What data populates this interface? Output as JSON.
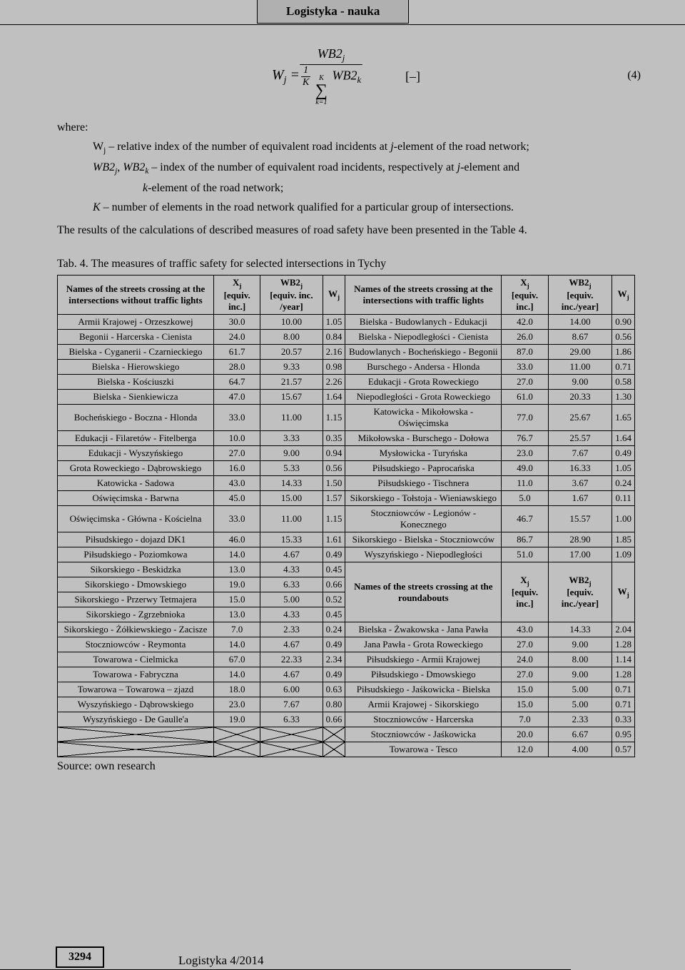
{
  "journal_header": "Logistyka - nauka",
  "equation_number": "(4)",
  "equation_unit": "[–]",
  "where_label": "where:",
  "definitions": {
    "wj": "W<sub>j</sub> – relative index of the number of equivalent road incidents at <i>j</i>-element of the road network;",
    "wb": "<i>WB2<sub>j</sub></i>, <i>WB2<sub>k</sub></i> – index of the number of equivalent road incidents, respectively at <i>j</i>-element and",
    "wb2": "<i>k</i>-element of the road network;",
    "K": "<i>K</i> – number of elements in the road network qualified for a particular group of intersections."
  },
  "results_line": "The results of  the calculations of described measures of road safety have been presented in the Table 4.",
  "table_caption": "Tab. 4. The measures of traffic safety for selected intersections in Tychy",
  "headers_left": {
    "name": "Names of the streets crossing at the intersections without traffic lights",
    "xj": "X<sub>j</sub><br>[equiv. inc.]",
    "wb2j": "WB2<sub>j</sub><br>[equiv. inc. /year]",
    "wj": "W<sub>j</sub>"
  },
  "headers_right": {
    "name": "Names of the streets crossing at the intersections with traffic lights",
    "xj": "X<sub>j</sub><br>[equiv. inc.]",
    "wb2j": "WB2<sub>j</sub><br>[equiv. inc./year]",
    "wj": "W<sub>j</sub>"
  },
  "headers_round": {
    "name": "Names of the streets crossing at the roundabouts",
    "xj": "X<sub>j</sub><br>[equiv. inc.]",
    "wb2j": "WB2<sub>j</sub><br>[equiv. inc./year]",
    "wj": "W<sub>j</sub>"
  },
  "left_rows": [
    [
      "Armii Krajowej - Orzeszkowej",
      "30.0",
      "10.00",
      "1.05"
    ],
    [
      "Begonii - Harcerska - Cienista",
      "24.0",
      "8.00",
      "0.84"
    ],
    [
      "Bielska - Cyganerii - Czarnieckiego",
      "61.7",
      "20.57",
      "2.16"
    ],
    [
      "Bielska - Hierowskiego",
      "28.0",
      "9.33",
      "0.98"
    ],
    [
      "Bielska - Kościuszki",
      "64.7",
      "21.57",
      "2.26"
    ],
    [
      "Bielska - Sienkiewicza",
      "47.0",
      "15.67",
      "1.64"
    ],
    [
      "Bocheńskiego - Boczna - Hlonda",
      "33.0",
      "11.00",
      "1.15"
    ],
    [
      "Edukacji - Filaretów - Fitelberga",
      "10.0",
      "3.33",
      "0.35"
    ],
    [
      "Edukacji - Wyszyńskiego",
      "27.0",
      "9.00",
      "0.94"
    ],
    [
      "Grota Roweckiego - Dąbrowskiego",
      "16.0",
      "5.33",
      "0.56"
    ],
    [
      "Katowicka - Sadowa",
      "43.0",
      "14.33",
      "1.50"
    ],
    [
      "Oświęcimska - Barwna",
      "45.0",
      "15.00",
      "1.57"
    ],
    [
      "Oświęcimska - Główna - Kościelna",
      "33.0",
      "11.00",
      "1.15"
    ],
    [
      "Piłsudskiego - dojazd DK1",
      "46.0",
      "15.33",
      "1.61"
    ],
    [
      "Piłsudskiego - Poziomkowa",
      "14.0",
      "4.67",
      "0.49"
    ],
    [
      "Sikorskiego - Beskidzka",
      "13.0",
      "4.33",
      "0.45"
    ],
    [
      "Sikorskiego - Dmowskiego",
      "19.0",
      "6.33",
      "0.66"
    ],
    [
      "Sikorskiego - Przerwy Tetmajera",
      "15.0",
      "5.00",
      "0.52"
    ],
    [
      "Sikorskiego - Zgrzebnioka",
      "13.0",
      "4.33",
      "0.45"
    ],
    [
      "Sikorskiego - Żółkiewskiego - Zacisze",
      "7.0",
      "2.33",
      "0.24"
    ],
    [
      "Stoczniowców - Reymonta",
      "14.0",
      "4.67",
      "0.49"
    ],
    [
      "Towarowa - Cielmicka",
      "67.0",
      "22.33",
      "2.34"
    ],
    [
      "Towarowa - Fabryczna",
      "14.0",
      "4.67",
      "0.49"
    ],
    [
      "Towarowa – Towarowa – zjazd",
      "18.0",
      "6.00",
      "0.63"
    ],
    [
      "Wyszyńskiego - Dąbrowskiego",
      "23.0",
      "7.67",
      "0.80"
    ],
    [
      "Wyszyńskiego - De Gaulle'a",
      "19.0",
      "6.33",
      "0.66"
    ]
  ],
  "right_rows": [
    [
      "Bielska - Budowlanych - Edukacji",
      "42.0",
      "14.00",
      "0.90"
    ],
    [
      "Bielska - Niepodległości - Cienista",
      "26.0",
      "8.67",
      "0.56"
    ],
    [
      "Budowlanych - Bocheńskiego - Begonii",
      "87.0",
      "29.00",
      "1.86"
    ],
    [
      "Burschego - Andersa - Hlonda",
      "33.0",
      "11.00",
      "0.71"
    ],
    [
      "Edukacji - Grota Roweckiego",
      "27.0",
      "9.00",
      "0.58"
    ],
    [
      "Niepodległości - Grota Roweckiego",
      "61.0",
      "20.33",
      "1.30"
    ],
    [
      "Katowicka - Mikołowska - Oświęcimska",
      "77.0",
      "25.67",
      "1.65"
    ],
    [
      "Mikołowska - Burschego - Dołowa",
      "76.7",
      "25.57",
      "1.64"
    ],
    [
      "Mysłowicka - Turyńska",
      "23.0",
      "7.67",
      "0.49"
    ],
    [
      "Piłsudskiego - Paprocańska",
      "49.0",
      "16.33",
      "1.05"
    ],
    [
      "Piłsudskiego - Tischnera",
      "11.0",
      "3.67",
      "0.24"
    ],
    [
      "Sikorskiego - Tołstoja - Wieniawskiego",
      "5.0",
      "1.67",
      "0.11"
    ],
    [
      "Stoczniowców - Legionów - Konecznego",
      "46.7",
      "15.57",
      "1.00"
    ],
    [
      "Sikorskiego - Bielska - Stoczniowców",
      "86.7",
      "28.90",
      "1.85"
    ],
    [
      "Wyszyńskiego - Niepodległości",
      "51.0",
      "17.00",
      "1.09"
    ]
  ],
  "round_rows": [
    [
      "Bielska - Żwakowska - Jana Pawła",
      "43.0",
      "14.33",
      "2.04"
    ],
    [
      "Jana Pawła - Grota Roweckiego",
      "27.0",
      "9.00",
      "1.28"
    ],
    [
      "Piłsudskiego - Armii Krajowej",
      "24.0",
      "8.00",
      "1.14"
    ],
    [
      "Piłsudskiego - Dmowskiego",
      "27.0",
      "9.00",
      "1.28"
    ],
    [
      "Piłsudskiego - Jaśkowicka - Bielska",
      "15.0",
      "5.00",
      "0.71"
    ],
    [
      "Armii Krajowej - Sikorskiego",
      "15.0",
      "5.00",
      "0.71"
    ],
    [
      "Stoczniowców - Harcerska",
      "7.0",
      "2.33",
      "0.33"
    ],
    [
      "Stoczniowców - Jaśkowicka",
      "20.0",
      "6.67",
      "0.95"
    ],
    [
      "Towarowa - Tesco",
      "12.0",
      "4.00",
      "0.57"
    ]
  ],
  "left_span_map": [
    1,
    1,
    1,
    1,
    1,
    1,
    1,
    1,
    1,
    1,
    1,
    1,
    1,
    1,
    1,
    4,
    1,
    1,
    1,
    1,
    1,
    1,
    2,
    1
  ],
  "source_note": "Source: own research",
  "footer": {
    "page_number": "3294",
    "issue": "Logistyka 4/2014"
  }
}
